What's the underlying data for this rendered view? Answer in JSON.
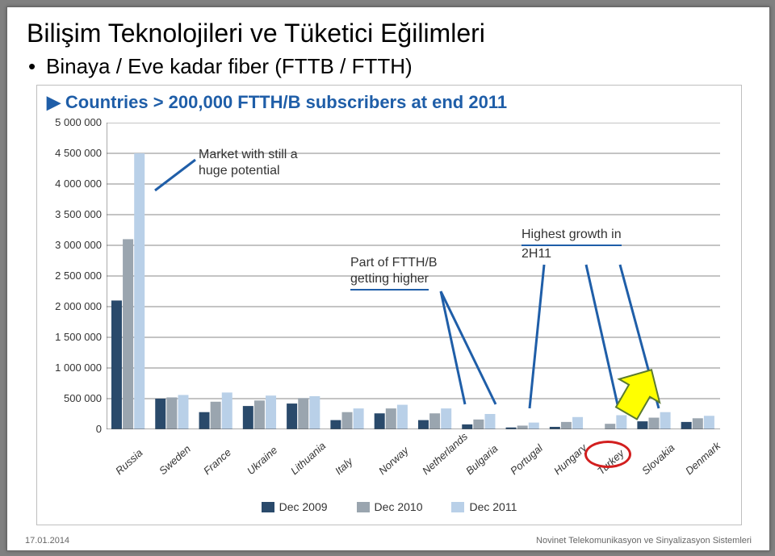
{
  "slide": {
    "title": "Bilişim Teknolojileri ve Tüketici Eğilimleri",
    "bullet": "Binaya / Eve kadar fiber (FTTB / FTTH)",
    "footer_left": "17.01.2014",
    "footer_right": "Novinet Telekomunikasyon ve Sinyalizasyon Sistemleri"
  },
  "chart": {
    "type": "grouped-bar",
    "title": "Countries > 200,000 FTTH/B subscribers at end 2011",
    "background_color": "#ffffff",
    "grid_color": "#888888",
    "axis_color": "#555555",
    "y": {
      "min": 0,
      "max": 5000000,
      "step": 500000,
      "ticks": [
        "0",
        "500 000",
        "1 000 000",
        "1 500 000",
        "2 000 000",
        "2 500 000",
        "3 000 000",
        "3 500 000",
        "4 000 000",
        "4 500 000",
        "5 000 000"
      ]
    },
    "categories": [
      "Russia",
      "Sweden",
      "France",
      "Ukraine",
      "Lithuania",
      "Italy",
      "Norway",
      "Netherlands",
      "Bulgaria",
      "Portugal",
      "Hungary",
      "Turkey",
      "Slovakia",
      "Denmark"
    ],
    "series": [
      {
        "name": "Dec 2009",
        "color": "#2a4a6b",
        "values": [
          2100000,
          500000,
          280000,
          380000,
          420000,
          150000,
          260000,
          150000,
          80000,
          30000,
          40000,
          0,
          130000,
          120000
        ]
      },
      {
        "name": "Dec 2010",
        "color": "#9aa5af",
        "values": [
          3100000,
          520000,
          450000,
          470000,
          510000,
          280000,
          340000,
          260000,
          160000,
          60000,
          120000,
          90000,
          190000,
          180000
        ]
      },
      {
        "name": "Dec 2011",
        "color": "#b9d0e8",
        "values": [
          4500000,
          560000,
          600000,
          550000,
          540000,
          340000,
          400000,
          340000,
          250000,
          110000,
          200000,
          230000,
          280000,
          220000
        ]
      }
    ],
    "bar_group_width": 0.78,
    "label_fontsize": 13,
    "title_fontsize": 22,
    "annotations": {
      "a1": {
        "text1": "Market with still a",
        "text2": "huge potential"
      },
      "a2": {
        "text1": "Part of FTTH/B",
        "text2": "getting higher"
      },
      "a3": {
        "text1": "Highest growth in",
        "text2": "2H11"
      }
    },
    "highlight": {
      "circle_target": "Turkey",
      "circle_color": "#d21f1f",
      "arrow_fill": "#ffff00",
      "arrow_stroke": "#5b7a2e"
    }
  }
}
